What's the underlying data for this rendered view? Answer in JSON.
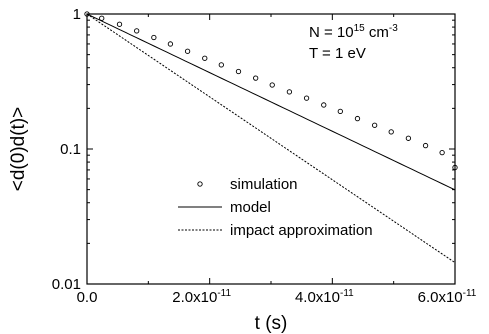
{
  "chart_data": {
    "type": "line",
    "xlabel": "t (s)",
    "ylabel": "<d(0)d(t)>",
    "xlim": [
      0,
      6e-11
    ],
    "ylim": [
      0.01,
      1
    ],
    "y_scale": "log",
    "grid": false,
    "legend_position": "bottom-center",
    "x_ticks": [
      {
        "value": 0,
        "label": "0.0",
        "exp": ""
      },
      {
        "value": 2e-11,
        "label": "2.0x10",
        "exp": "-11"
      },
      {
        "value": 4e-11,
        "label": "4.0x10",
        "exp": "-11"
      },
      {
        "value": 6e-11,
        "label": "6.0x10",
        "exp": "-11"
      }
    ],
    "y_ticks": [
      {
        "value": 1,
        "label": "1"
      },
      {
        "value": 0.1,
        "label": "0.1"
      },
      {
        "value": 0.01,
        "label": "0.01"
      }
    ],
    "annotations": [
      {
        "text": "N = 10",
        "sup": "15",
        "suffix": " cm",
        "suffix_sup": "-3"
      },
      {
        "text": "T = 1 eV",
        "sup": "",
        "suffix": "",
        "suffix_sup": ""
      }
    ],
    "series": [
      {
        "name": "simulation",
        "style": "open-circle",
        "x": [
          0,
          2.4e-12,
          5.3e-12,
          8.1e-12,
          1.09e-11,
          1.36e-11,
          1.64e-11,
          1.92e-11,
          2.19e-11,
          2.47e-11,
          2.75e-11,
          3.02e-11,
          3.3e-11,
          3.58e-11,
          3.86e-11,
          4.13e-11,
          4.41e-11,
          4.69e-11,
          4.96e-11,
          5.24e-11,
          5.52e-11,
          5.79e-11,
          6e-11
        ],
        "y": [
          1.0,
          0.93,
          0.84,
          0.75,
          0.67,
          0.6,
          0.53,
          0.47,
          0.42,
          0.375,
          0.335,
          0.298,
          0.265,
          0.238,
          0.212,
          0.19,
          0.168,
          0.15,
          0.134,
          0.12,
          0.106,
          0.094,
          0.073
        ]
      },
      {
        "name": "model",
        "style": "solid",
        "x": [
          0,
          1e-11,
          2e-11,
          3e-11,
          4e-11,
          5e-11,
          6e-11
        ],
        "y": [
          1.0,
          0.6065,
          0.3679,
          0.2231,
          0.1353,
          0.0821,
          0.0498
        ]
      },
      {
        "name": "impact approximation",
        "style": "dotted",
        "x": [
          0,
          1e-11,
          2e-11,
          3e-11,
          4e-11,
          5e-11,
          6e-11
        ],
        "y": [
          1.0,
          0.4932,
          0.2432,
          0.1199,
          0.0592,
          0.0292,
          0.0144
        ]
      }
    ]
  }
}
